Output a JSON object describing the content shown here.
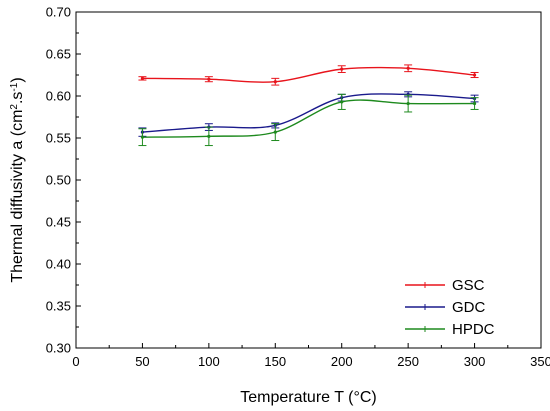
{
  "chart_data": {
    "type": "line",
    "title": "",
    "xlabel": "Temperature T (°C)",
    "ylabel_parts": [
      "Thermal diffusivity a (cm",
      "2",
      ".s",
      "-1",
      ")"
    ],
    "xlim": [
      0,
      350
    ],
    "ylim": [
      0.3,
      0.7
    ],
    "x_ticks": [
      "0",
      "50",
      "100",
      "150",
      "200",
      "250",
      "300",
      "350"
    ],
    "y_ticks": [
      "0.30",
      "0.35",
      "0.40",
      "0.45",
      "0.50",
      "0.55",
      "0.60",
      "0.65",
      "0.70"
    ],
    "grid": false,
    "legend_position": "bottom-right",
    "x": [
      50,
      100,
      150,
      200,
      250,
      300
    ],
    "series": [
      {
        "name": "GSC",
        "color": "#e8141c",
        "values": [
          0.621,
          0.62,
          0.617,
          0.632,
          0.633,
          0.625
        ],
        "errors": [
          0.002,
          0.003,
          0.004,
          0.004,
          0.004,
          0.003
        ]
      },
      {
        "name": "GDC",
        "color": "#1a1a8c",
        "values": [
          0.557,
          0.563,
          0.565,
          0.598,
          0.602,
          0.597
        ],
        "errors": [
          0.005,
          0.004,
          0.003,
          0.004,
          0.003,
          0.004
        ]
      },
      {
        "name": "HPDC",
        "color": "#1e8a1e",
        "values": [
          0.551,
          0.552,
          0.557,
          0.593,
          0.591,
          0.591
        ],
        "errors": [
          0.01,
          0.011,
          0.01,
          0.009,
          0.01,
          0.007
        ]
      }
    ]
  }
}
